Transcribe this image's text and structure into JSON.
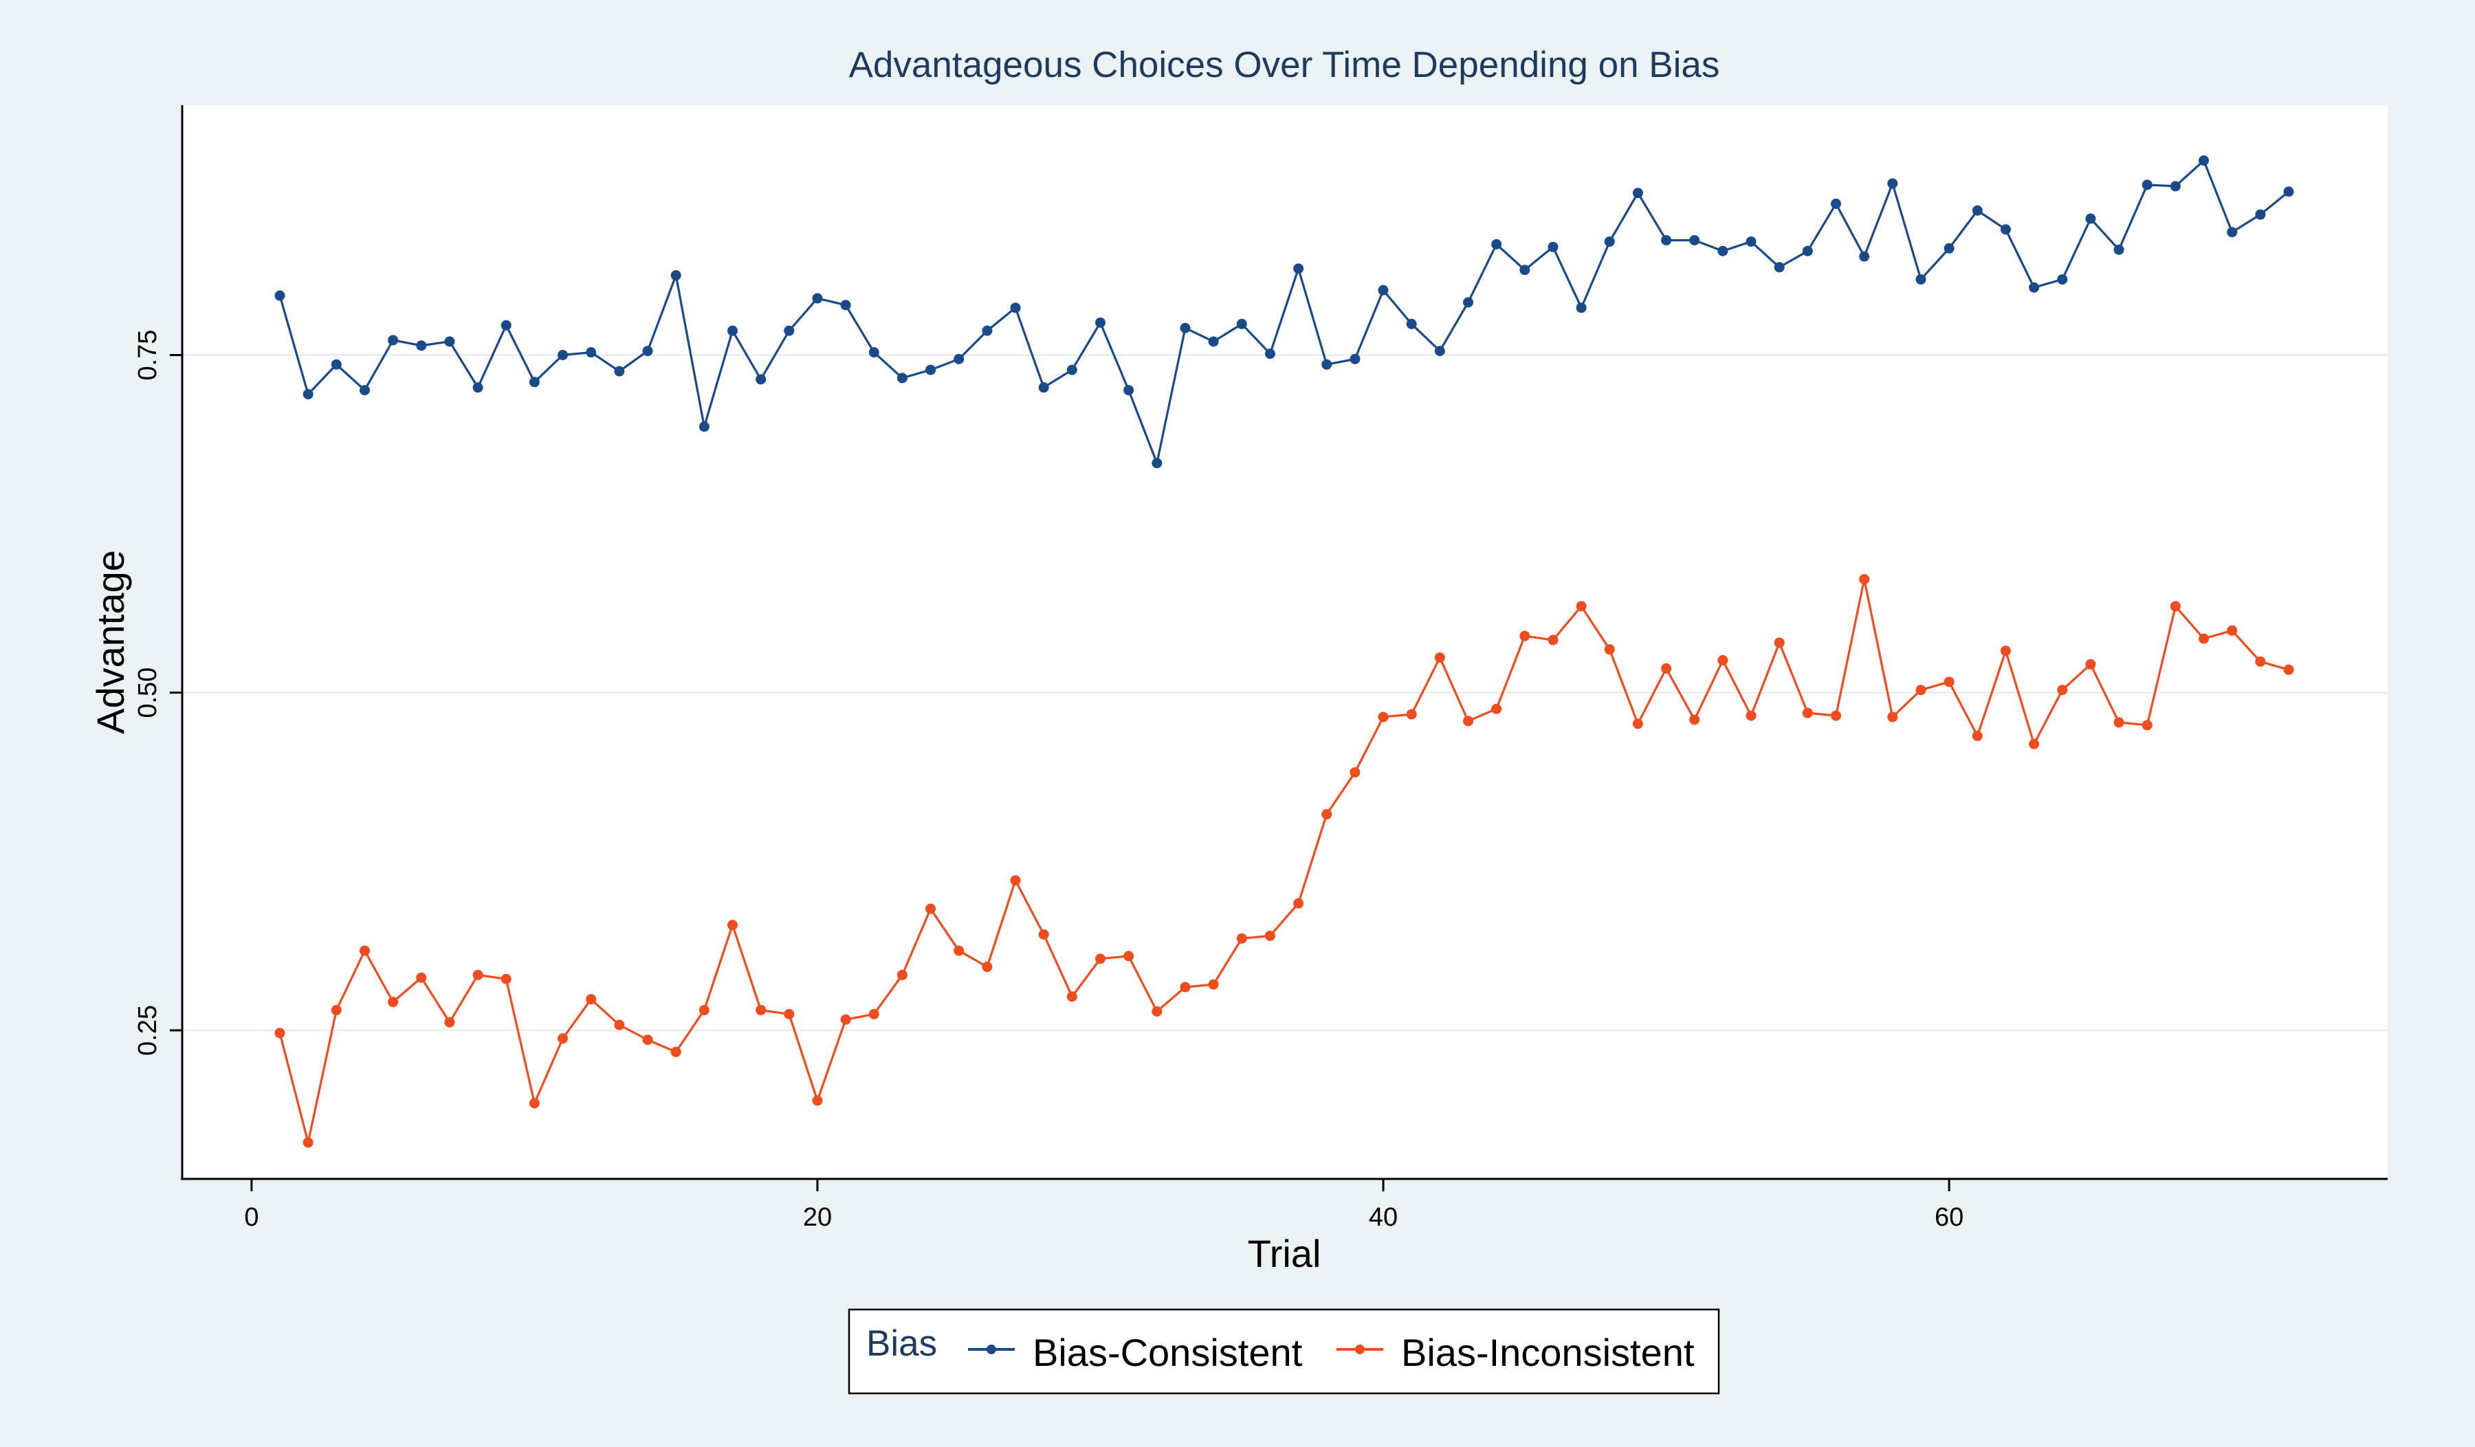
{
  "chart_data": {
    "type": "line",
    "title": "Advantageous Choices Over Time Depending on Bias",
    "xlabel": "Trial",
    "ylabel": "Advantage",
    "xlim": [
      -2.5,
      75.5
    ],
    "ylim": [
      0.14,
      0.935
    ],
    "xticks": [
      0,
      20,
      40,
      60
    ],
    "xtick_labels": [
      "0",
      "20",
      "40",
      "60"
    ],
    "yticks": [
      0.25,
      0.5,
      0.75
    ],
    "ytick_labels": [
      "0.25",
      "0.50",
      "0.75"
    ],
    "grid": true,
    "legend": {
      "title": "Bias",
      "position": "bottom-center"
    },
    "x": [
      1,
      2,
      3,
      4,
      5,
      6,
      7,
      8,
      9,
      10,
      11,
      12,
      13,
      14,
      15,
      16,
      17,
      18,
      19,
      20,
      21,
      22,
      23,
      24,
      25,
      26,
      27,
      28,
      29,
      30,
      31,
      32,
      33,
      34,
      35,
      36,
      37,
      38,
      39,
      40,
      41,
      42,
      43,
      44,
      45,
      46,
      47,
      48,
      49,
      50,
      51,
      52,
      53,
      54,
      55,
      56,
      57,
      58,
      59,
      60,
      61,
      62,
      63,
      64,
      65,
      66,
      67,
      68,
      69,
      70,
      71,
      72
    ],
    "series": [
      {
        "name": "Bias-Consistent",
        "color": "#1a4a8a",
        "values": [
          0.794,
          0.721,
          0.743,
          0.724,
          0.761,
          0.757,
          0.76,
          0.726,
          0.772,
          0.73,
          0.75,
          0.752,
          0.738,
          0.753,
          0.809,
          0.697,
          0.768,
          0.732,
          0.768,
          0.792,
          0.787,
          0.752,
          0.733,
          0.739,
          0.747,
          0.768,
          0.785,
          0.726,
          0.739,
          0.774,
          0.724,
          0.67,
          0.77,
          0.76,
          0.773,
          0.751,
          0.814,
          0.743,
          0.747,
          0.798,
          0.773,
          0.753,
          0.789,
          0.832,
          0.813,
          0.83,
          0.785,
          0.834,
          0.87,
          0.835,
          0.835,
          0.827,
          0.834,
          0.815,
          0.827,
          0.862,
          0.823,
          0.877,
          0.806,
          0.829,
          0.857,
          0.843,
          0.8,
          0.806,
          0.851,
          0.828,
          0.876,
          0.875,
          0.894,
          0.841,
          0.854,
          0.871
        ]
      },
      {
        "name": "Bias-Inconsistent",
        "color": "#f04c1e",
        "values": [
          0.248,
          0.167,
          0.265,
          0.309,
          0.271,
          0.289,
          0.256,
          0.291,
          0.288,
          0.196,
          0.244,
          0.273,
          0.254,
          0.243,
          0.234,
          0.265,
          0.328,
          0.265,
          0.262,
          0.198,
          0.258,
          0.262,
          0.291,
          0.34,
          0.309,
          0.297,
          0.361,
          0.321,
          0.275,
          0.303,
          0.305,
          0.264,
          0.282,
          0.284,
          0.318,
          0.32,
          0.344,
          0.41,
          0.441,
          0.482,
          0.484,
          0.526,
          0.479,
          0.488,
          0.542,
          0.539,
          0.564,
          0.532,
          0.477,
          0.518,
          0.48,
          0.524,
          0.483,
          0.537,
          0.485,
          0.483,
          0.584,
          0.482,
          0.502,
          0.508,
          0.468,
          0.531,
          0.462,
          0.502,
          0.521,
          0.478,
          0.476,
          0.564,
          0.54,
          0.546,
          0.523,
          0.517
        ]
      }
    ]
  }
}
